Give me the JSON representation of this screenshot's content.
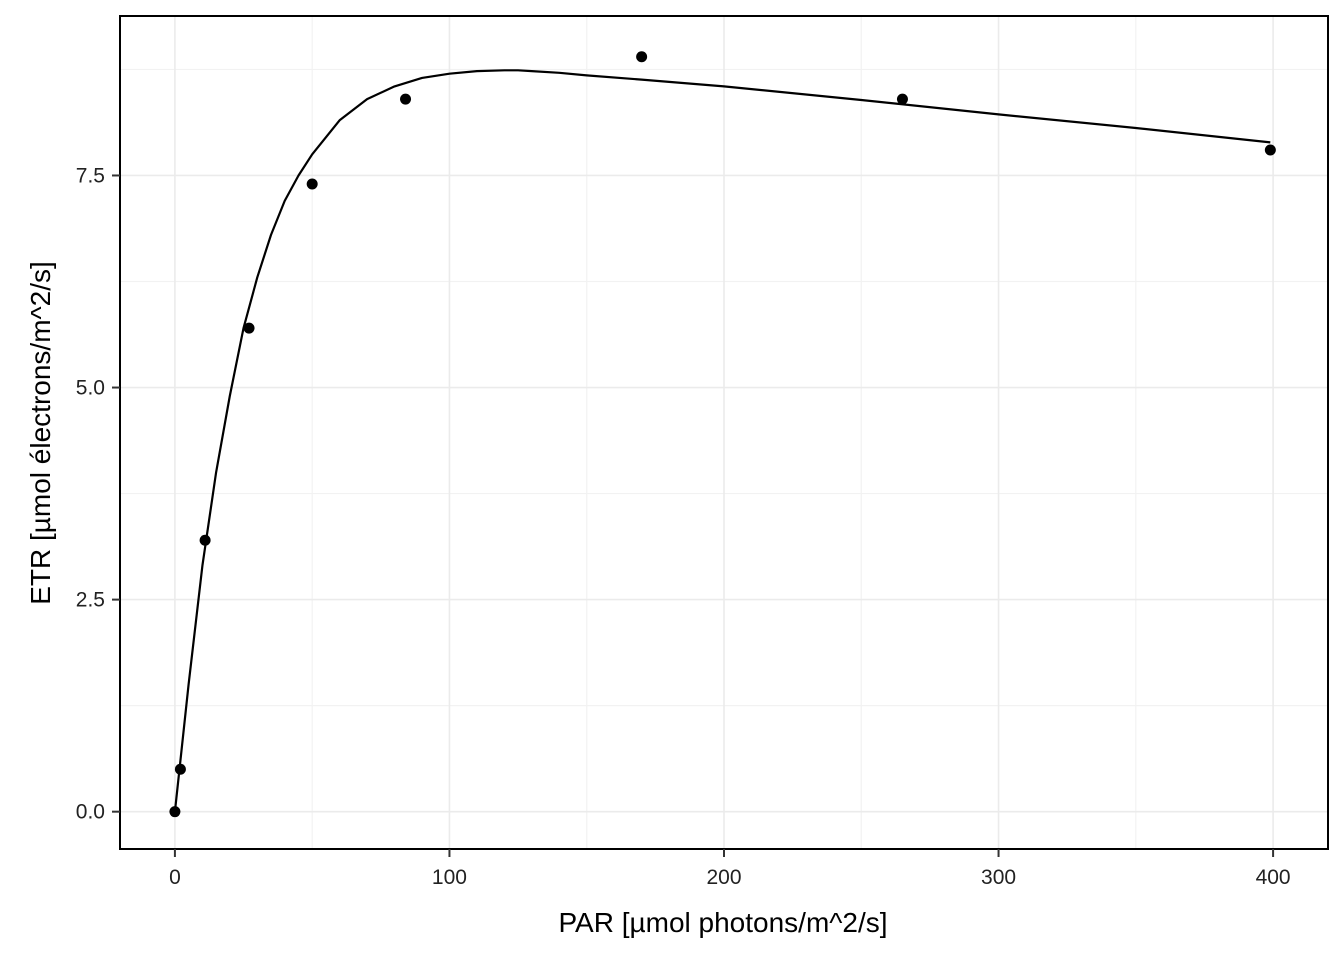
{
  "chart_data": {
    "type": "scatter",
    "title": "",
    "xlabel": "PAR  [µmol photons/m^2/s]",
    "ylabel": "ETR  [µmol électrons/m^2/s]",
    "xlim": [
      -20,
      420
    ],
    "ylim": [
      -0.44,
      9.38
    ],
    "x_major_ticks": [
      0,
      100,
      200,
      300,
      400
    ],
    "x_tick_labels": [
      "0",
      "100",
      "200",
      "300",
      "400"
    ],
    "x_minor_gridlines": [
      50,
      150,
      250,
      350
    ],
    "y_major_ticks": [
      0,
      2.5,
      5,
      7.5
    ],
    "y_tick_labels": [
      "0.0",
      "2.5",
      "5.0",
      "7.5"
    ],
    "y_minor_gridlines": [
      1.25,
      3.75,
      6.25,
      8.75
    ],
    "grid": true,
    "series": [
      {
        "kind": "points",
        "x": [
          0,
          2,
          11,
          27,
          50,
          84,
          170,
          265,
          399
        ],
        "y": [
          0.0,
          0.5,
          3.2,
          5.7,
          7.4,
          8.4,
          8.9,
          8.4,
          7.8
        ]
      },
      {
        "kind": "fit-line",
        "x": [
          0,
          2,
          5,
          10,
          15,
          20,
          25,
          30,
          35,
          40,
          45,
          50,
          55,
          60,
          70,
          80,
          90,
          100,
          110,
          120,
          125,
          130,
          140,
          150,
          170,
          200,
          250,
          300,
          350,
          399
        ],
        "y": [
          0.0,
          0.6,
          1.5,
          2.9,
          4.0,
          4.9,
          5.7,
          6.3,
          6.8,
          7.2,
          7.5,
          7.75,
          7.95,
          8.15,
          8.4,
          8.55,
          8.65,
          8.7,
          8.73,
          8.74,
          8.74,
          8.73,
          8.71,
          8.68,
          8.63,
          8.55,
          8.39,
          8.22,
          8.06,
          7.89
        ]
      }
    ]
  }
}
